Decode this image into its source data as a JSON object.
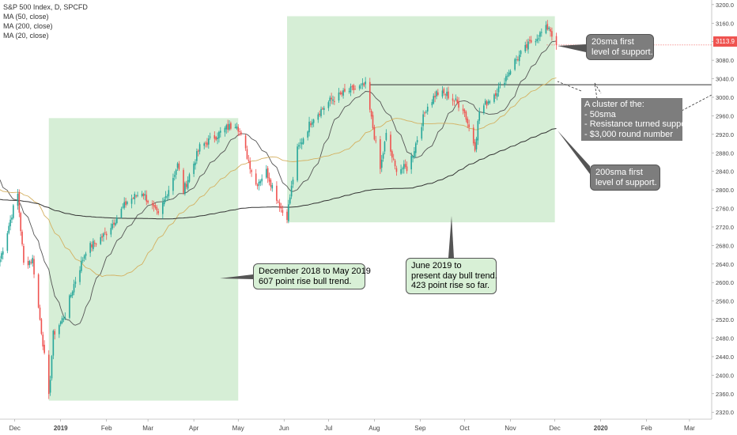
{
  "legend": {
    "symbol": "S&P 500 Index, D, SPCFD",
    "ma50": "MA (50, close)",
    "ma200": "MA (200, close)",
    "ma20": "MA (20, close)"
  },
  "last_price": "3113.9",
  "colors": {
    "up": "#26a69a",
    "down": "#ef5350",
    "ma20": "#555555",
    "ma50": "#d4b060",
    "ma200": "#333333",
    "zone_fill": "#d6eed6",
    "callout_grey": "#7d7d7d"
  },
  "annotations": {
    "trend1": [
      "December 2018 to May 2019",
      "607 point rise bull trend."
    ],
    "trend2": [
      "June 2019 to",
      "present day bull trend.",
      "423 point rise so far."
    ],
    "sma20": [
      "20sma first",
      "level of support."
    ],
    "cluster": [
      "A cluster of the:",
      "- 50sma",
      "- Resistance turned support",
      "- $3,000 round number"
    ],
    "sma200": [
      "200sma first",
      "level of support."
    ]
  },
  "chart_data": {
    "type": "candlestick",
    "title": "S&P 500 Index, D, SPCFD",
    "y_ticks": [
      2320,
      2360,
      2400,
      2440,
      2480,
      2520,
      2560,
      2600,
      2640,
      2680,
      2720,
      2760,
      2800,
      2840,
      2880,
      2920,
      2960,
      3000,
      3040,
      3080,
      3120,
      3160,
      3200
    ],
    "y_tick_labels": [
      "2320.0",
      "2360.0",
      "2400.0",
      "2440.0",
      "2480.0",
      "2520.0",
      "2560.0",
      "2600.0",
      "2640.0",
      "2680.0",
      "2720.0",
      "2760.0",
      "2800.0",
      "2840.0",
      "2880.0",
      "2920.0",
      "2960.0",
      "3000.0",
      "3040.0",
      "3080.0",
      "3120.0",
      "3160.0",
      "3200.0"
    ],
    "ylim": [
      2305,
      3210
    ],
    "x_ticks": [
      "Dec",
      "2019",
      "Feb",
      "Mar",
      "Apr",
      "May",
      "Jun",
      "Jul",
      "Aug",
      "Sep",
      "Oct",
      "Nov",
      "Dec",
      "2020",
      "Feb",
      "Mar"
    ],
    "x_tick_dates": [
      "2018-12-01",
      "2019-01-01",
      "2019-02-01",
      "2019-03-01",
      "2019-04-01",
      "2019-05-01",
      "2019-06-01",
      "2019-07-01",
      "2019-08-01",
      "2019-09-01",
      "2019-10-01",
      "2019-11-01",
      "2019-12-01",
      "2020-01-01",
      "2020-02-01",
      "2020-03-01"
    ],
    "xlim": [
      "2018-11-21",
      "2020-03-16"
    ],
    "last_date": "2019-12-02",
    "anchors": [
      [
        "2018-11-21",
        2650
      ],
      [
        "2018-11-30",
        2760
      ],
      [
        "2018-12-03",
        2790
      ],
      [
        "2018-12-07",
        2640
      ],
      [
        "2018-12-13",
        2650
      ],
      [
        "2018-12-17",
        2545
      ],
      [
        "2018-12-20",
        2470
      ],
      [
        "2018-12-24",
        2351
      ],
      [
        "2018-12-27",
        2488
      ],
      [
        "2019-01-04",
        2531
      ],
      [
        "2019-01-10",
        2596
      ],
      [
        "2019-01-18",
        2670
      ],
      [
        "2019-01-31",
        2704
      ],
      [
        "2019-02-15",
        2775
      ],
      [
        "2019-02-25",
        2796
      ],
      [
        "2019-03-08",
        2743
      ],
      [
        "2019-03-21",
        2854
      ],
      [
        "2019-03-25",
        2798
      ],
      [
        "2019-04-05",
        2892
      ],
      [
        "2019-04-23",
        2933
      ],
      [
        "2019-04-30",
        2945
      ],
      [
        "2019-05-13",
        2812
      ],
      [
        "2019-05-20",
        2840
      ],
      [
        "2019-05-31",
        2752
      ],
      [
        "2019-06-03",
        2744
      ],
      [
        "2019-06-10",
        2886
      ],
      [
        "2019-06-20",
        2954
      ],
      [
        "2019-07-03",
        2995
      ],
      [
        "2019-07-15",
        3014
      ],
      [
        "2019-07-26",
        3025
      ],
      [
        "2019-08-05",
        2844
      ],
      [
        "2019-08-09",
        2918
      ],
      [
        "2019-08-15",
        2847
      ],
      [
        "2019-08-23",
        2847
      ],
      [
        "2019-08-27",
        2878
      ],
      [
        "2019-09-05",
        2977
      ],
      [
        "2019-09-12",
        3009
      ],
      [
        "2019-09-19",
        3006
      ],
      [
        "2019-09-30",
        2977
      ],
      [
        "2019-10-08",
        2893
      ],
      [
        "2019-10-11",
        2970
      ],
      [
        "2019-10-25",
        3023
      ],
      [
        "2019-11-04",
        3078
      ],
      [
        "2019-11-15",
        3120
      ],
      [
        "2019-11-27",
        3153
      ],
      [
        "2019-12-02",
        3113
      ]
    ],
    "series": [
      {
        "name": "MA (20, close)",
        "type": "line"
      },
      {
        "name": "MA (50, close)",
        "type": "line"
      },
      {
        "name": "MA (200, close)",
        "type": "line"
      }
    ],
    "zones": [
      {
        "from": "2018-12-24",
        "to": "2019-05-01",
        "low": 2345,
        "high": 2955
      },
      {
        "from": "2019-06-03",
        "to": "2019-12-01",
        "low": 2730,
        "high": 3175
      }
    ],
    "resistance_level": {
      "from": "2019-07-29",
      "value": 3027
    },
    "grid": false,
    "legend_position": "top-left"
  }
}
